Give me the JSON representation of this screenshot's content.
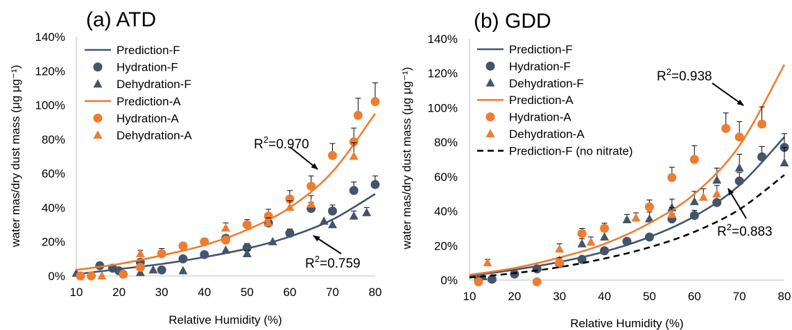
{
  "colors": {
    "F": "#44546A",
    "A": "#ED7D31",
    "nitrate": "#000000",
    "axis": "#bfbfbf",
    "errorbar": "#000000"
  },
  "chart_data": [
    {
      "type": "scatter",
      "title": "(a) ATD",
      "xlabel": "Relative Humidity (%)",
      "ylabel": "water mas/dry dust mass (μg μg⁻¹)",
      "xlim": [
        10,
        80
      ],
      "ylim": [
        0,
        140
      ],
      "xticks": [
        "10",
        "20",
        "30",
        "40",
        "50",
        "60",
        "70",
        "80"
      ],
      "yticks": [
        "0%",
        "20%",
        "40%",
        "60%",
        "80%",
        "100%",
        "120%",
        "140%"
      ],
      "grid": false,
      "legend_position": "top-left",
      "legend": [
        "Prediction-F",
        "Hydration-F",
        "Dehydration-F",
        "Prediction-A",
        "Hydration-A",
        "Dehydration-A"
      ],
      "series": [
        {
          "name": "Prediction-F",
          "kind": "line",
          "color": "F",
          "x": [
            10,
            20,
            30,
            40,
            50,
            60,
            70,
            80
          ],
          "y": [
            1,
            4,
            7,
            11,
            16,
            23,
            33,
            48
          ]
        },
        {
          "name": "Hydration-F",
          "kind": "circle",
          "color": "F",
          "x": [
            15.5,
            18.5,
            20,
            25,
            30,
            35,
            40,
            45,
            50,
            55,
            60,
            65,
            70,
            75,
            80
          ],
          "y": [
            6,
            4.5,
            3,
            8,
            3.5,
            10,
            12.5,
            22,
            16.5,
            31,
            25,
            39.5,
            38,
            50,
            53.5
          ],
          "err": [
            0,
            0,
            0,
            0,
            0,
            0,
            0,
            2,
            2.5,
            0,
            2.5,
            3.5,
            3.5,
            5,
            5
          ]
        },
        {
          "name": "Dehydration-F",
          "kind": "triangle",
          "color": "F",
          "x": [
            10,
            25,
            28,
            35,
            45,
            50,
            56,
            68,
            70,
            75,
            78
          ],
          "y": [
            1.5,
            2,
            3.5,
            3,
            15,
            13,
            20,
            32,
            30,
            35,
            37
          ],
          "err": [
            0,
            0,
            0,
            0,
            0,
            2,
            0,
            0,
            0,
            3,
            3
          ]
        },
        {
          "name": "Prediction-A",
          "kind": "line",
          "color": "A",
          "x": [
            10,
            20,
            30,
            40,
            50,
            60,
            70,
            80
          ],
          "y": [
            3.5,
            7,
            12,
            18,
            27,
            40,
            61,
            95
          ]
        },
        {
          "name": "Hydration-A",
          "kind": "circle",
          "color": "A",
          "x": [
            11,
            13.5,
            21,
            25,
            30,
            35,
            40,
            45,
            50,
            55,
            60,
            65,
            70,
            75,
            76,
            80
          ],
          "y": [
            0,
            0,
            1,
            5,
            13,
            17.5,
            20,
            21,
            30,
            35,
            45,
            52.5,
            70.5,
            78.5,
            94,
            102
          ],
          "err": [
            0,
            0,
            0,
            2,
            3,
            2,
            2,
            2,
            3,
            4,
            5,
            6,
            7,
            8,
            10,
            11
          ]
        },
        {
          "name": "Dehydration-A",
          "kind": "triangle",
          "color": "A",
          "x": [
            16,
            25,
            45,
            55,
            60,
            65,
            75
          ],
          "y": [
            0,
            13,
            28,
            31,
            40,
            42,
            70
          ],
          "err": [
            0,
            2,
            3,
            3,
            4,
            5,
            8
          ]
        }
      ],
      "annotations": [
        {
          "text": "R²=0.970",
          "ref": "A"
        },
        {
          "text": "R²=0.759",
          "ref": "F"
        }
      ]
    },
    {
      "type": "scatter",
      "title": "(b) GDD",
      "xlabel": "Relative Humidity (%)",
      "ylabel": "water mas/dry dust mass (μg μg⁻¹)",
      "xlim": [
        10,
        80
      ],
      "ylim": [
        0,
        140
      ],
      "xticks": [
        "10",
        "20",
        "30",
        "40",
        "50",
        "60",
        "70",
        "80"
      ],
      "yticks": [
        "0%",
        "20%",
        "40%",
        "60%",
        "80%",
        "100%",
        "120%",
        "140%"
      ],
      "grid": false,
      "legend_position": "top-left",
      "legend": [
        "Prediction-F",
        "Hydration-F",
        "Dehydration-F",
        "Prediction-A",
        "Hydration-A",
        "Dehydration-A",
        "Prediction-F (no nitrate)"
      ],
      "series": [
        {
          "name": "Prediction-F",
          "kind": "line",
          "color": "F",
          "x": [
            10,
            20,
            30,
            40,
            50,
            60,
            70,
            80
          ],
          "y": [
            2.5,
            6,
            10.5,
            16.5,
            25,
            37,
            55,
            83
          ]
        },
        {
          "name": "Hydration-F",
          "kind": "circle",
          "color": "F",
          "x": [
            12,
            15,
            20,
            25,
            30,
            35,
            40,
            45,
            50,
            55,
            60,
            65,
            70,
            75,
            80
          ],
          "y": [
            0,
            0.5,
            3.5,
            6.5,
            9.5,
            12,
            17,
            22.5,
            25,
            35.5,
            37.5,
            45,
            57.5,
            71.5,
            77
          ],
          "err": [
            0,
            0,
            0,
            0,
            0,
            0,
            0,
            0,
            0,
            3,
            3,
            3.5,
            5,
            6,
            8
          ]
        },
        {
          "name": "Dehydration-F",
          "kind": "triangle",
          "color": "F",
          "x": [
            13,
            15,
            30,
            35,
            40,
            45,
            50,
            55,
            60,
            65,
            70,
            80
          ],
          "y": [
            2,
            1,
            11.5,
            21,
            25,
            35,
            35.5,
            42,
            45.5,
            58,
            65,
            68
          ],
          "err": [
            0,
            0,
            0,
            3,
            3,
            3,
            4,
            5,
            6,
            7,
            8,
            9
          ]
        },
        {
          "name": "Prediction-A",
          "kind": "line",
          "color": "A",
          "x": [
            10,
            20,
            30,
            40,
            50,
            60,
            70,
            80
          ],
          "y": [
            3,
            7,
            13,
            21,
            33,
            50,
            78,
            125
          ]
        },
        {
          "name": "Hydration-A",
          "kind": "circle",
          "color": "A",
          "x": [
            12,
            25,
            30,
            35,
            40,
            50,
            55,
            60,
            67,
            70,
            75
          ],
          "y": [
            -1,
            -1,
            10,
            27,
            30,
            42.5,
            59.5,
            70,
            88,
            83,
            90.5
          ],
          "err": [
            0,
            0,
            3,
            3,
            3,
            4,
            6,
            8,
            9,
            9,
            10
          ]
        },
        {
          "name": "Dehydration-A",
          "kind": "triangle",
          "color": "A",
          "x": [
            14,
            30,
            37,
            47,
            55,
            62,
            65
          ],
          "y": [
            10,
            18,
            22,
            36,
            38,
            48,
            50
          ],
          "err": [
            2,
            3,
            3,
            3,
            4,
            5,
            5
          ]
        },
        {
          "name": "Prediction-F (no nitrate)",
          "kind": "dashed",
          "color": "nitrate",
          "x": [
            10,
            20,
            30,
            40,
            50,
            60,
            70,
            80
          ],
          "y": [
            1.5,
            4,
            7.5,
            12.5,
            19,
            28,
            41,
            61
          ]
        }
      ],
      "annotations": [
        {
          "text": "R²=0.938",
          "ref": "A"
        },
        {
          "text": "R²=0.883",
          "ref": "F"
        }
      ]
    }
  ]
}
